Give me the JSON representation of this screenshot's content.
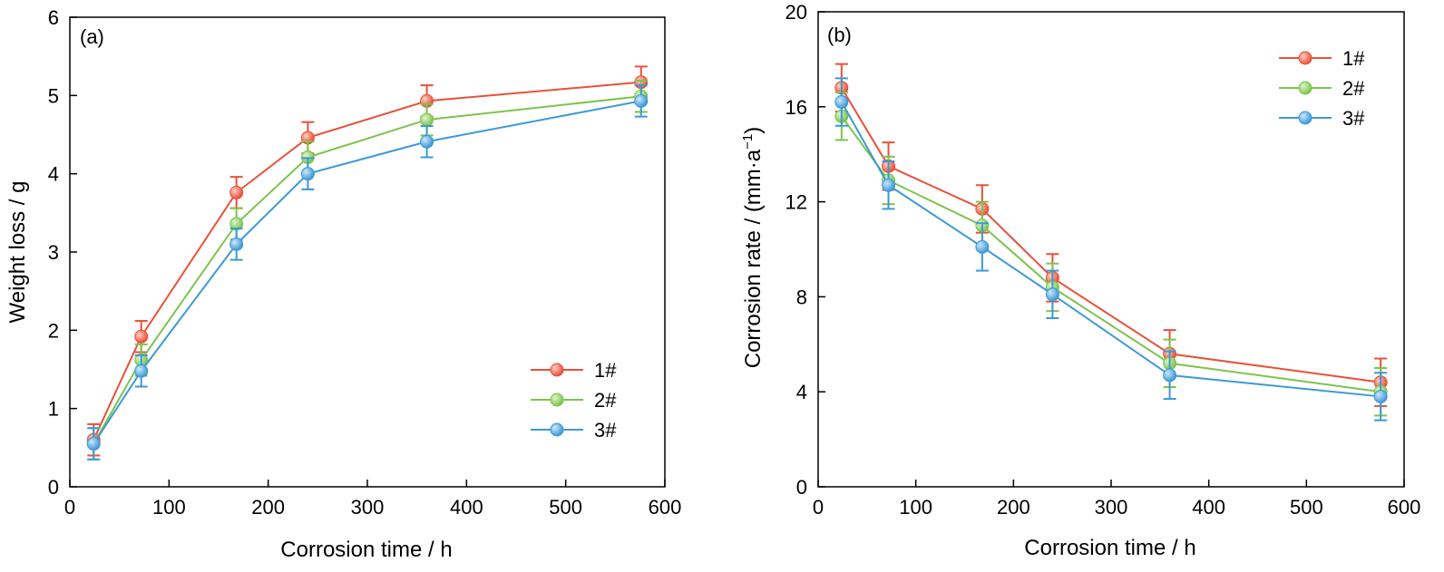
{
  "chart_data": [
    {
      "type": "line",
      "panel_label": "(a)",
      "xlabel": "Corrosion time / h",
      "ylabel": "Weight loss / g",
      "xlim": [
        0,
        600
      ],
      "ylim": [
        0,
        6
      ],
      "xticks": [
        0,
        100,
        200,
        300,
        400,
        500,
        600
      ],
      "yticks": [
        0,
        1,
        2,
        3,
        4,
        5,
        6
      ],
      "legend_position": "lower-right",
      "grid": false,
      "x": [
        24,
        72,
        168,
        240,
        360,
        576
      ],
      "series": [
        {
          "name": "1#",
          "color": "#e8513a",
          "values": [
            0.6,
            1.92,
            3.76,
            4.46,
            4.93,
            5.17
          ],
          "errors": [
            0.2,
            0.2,
            0.2,
            0.2,
            0.2,
            0.2
          ]
        },
        {
          "name": "2#",
          "color": "#7cc44e",
          "values": [
            0.55,
            1.62,
            3.36,
            4.21,
            4.69,
            4.99
          ],
          "errors": [
            0.2,
            0.2,
            0.2,
            0.2,
            0.2,
            0.2
          ]
        },
        {
          "name": "3#",
          "color": "#3d99d6",
          "values": [
            0.55,
            1.48,
            3.1,
            4.0,
            4.41,
            4.93
          ],
          "errors": [
            0.2,
            0.2,
            0.2,
            0.2,
            0.2,
            0.2
          ]
        }
      ]
    },
    {
      "type": "line",
      "panel_label": "(b)",
      "xlabel": "Corrosion time / h",
      "ylabel": "Corrosion rate / (mm·a",
      "ylabel_sup": "−1",
      "ylabel_end": ")",
      "xlim": [
        0,
        600
      ],
      "ylim": [
        0,
        20
      ],
      "xticks": [
        0,
        100,
        200,
        300,
        400,
        500,
        600
      ],
      "yticks": [
        0,
        4,
        8,
        12,
        16,
        20
      ],
      "legend_position": "top-right",
      "grid": false,
      "x": [
        24,
        72,
        168,
        240,
        360,
        576
      ],
      "series": [
        {
          "name": "1#",
          "color": "#e8513a",
          "values": [
            16.8,
            13.5,
            11.7,
            8.8,
            5.6,
            4.4
          ],
          "errors": [
            1.0,
            1.0,
            1.0,
            1.0,
            1.0,
            1.0
          ]
        },
        {
          "name": "2#",
          "color": "#7cc44e",
          "values": [
            15.6,
            12.9,
            11.0,
            8.4,
            5.2,
            4.0
          ],
          "errors": [
            1.0,
            1.0,
            1.0,
            1.0,
            1.0,
            1.0
          ]
        },
        {
          "name": "3#",
          "color": "#3d99d6",
          "values": [
            16.2,
            12.7,
            10.1,
            8.1,
            4.7,
            3.8
          ],
          "errors": [
            1.0,
            1.0,
            1.0,
            1.0,
            1.0,
            1.0
          ]
        }
      ]
    }
  ]
}
